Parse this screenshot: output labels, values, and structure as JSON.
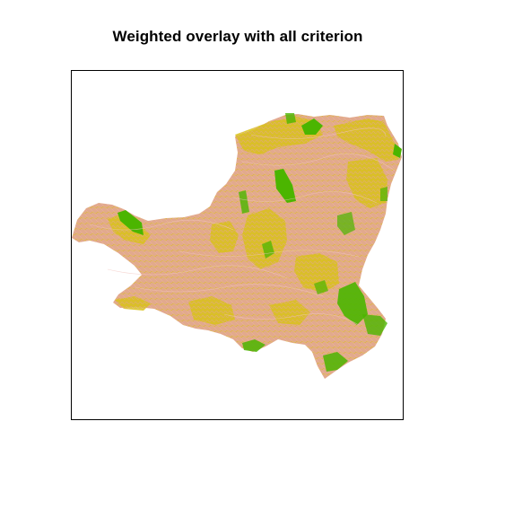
{
  "title": "Weighted overlay with all criterion",
  "map": {
    "colors": {
      "low": "#e2a98e",
      "mid": "#d4d000",
      "high": "#4bb500",
      "pink": "#e8b4ae",
      "frame": "#000000"
    }
  }
}
